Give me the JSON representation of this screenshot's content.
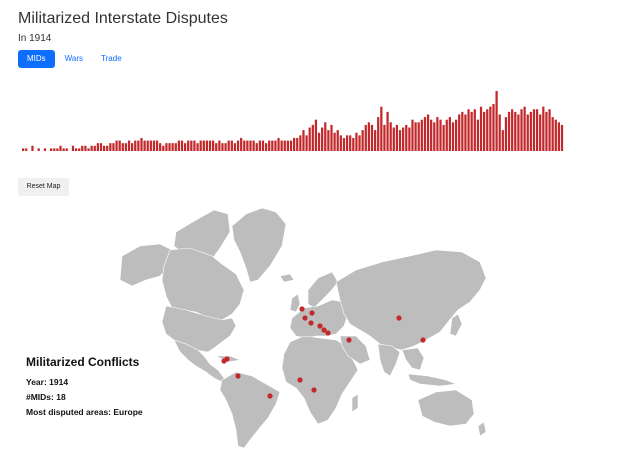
{
  "header": {
    "title": "Militarized Interstate Disputes",
    "subtitle": "In 1914"
  },
  "tabs": [
    {
      "label": "MIDs",
      "active": true
    },
    {
      "label": "Wars",
      "active": false
    },
    {
      "label": "Trade",
      "active": false
    }
  ],
  "colors": {
    "accent": "#0d6efd",
    "bar": "#c3282b",
    "land": "#bdbdbd",
    "point": "#c3282b"
  },
  "chart_data": {
    "type": "bar",
    "title": "",
    "values": [
      1,
      1,
      0,
      2,
      0,
      1,
      0,
      1,
      0,
      1,
      1,
      1,
      2,
      1,
      1,
      0,
      2,
      1,
      1,
      2,
      2,
      1,
      2,
      2,
      3,
      3,
      2,
      2,
      3,
      3,
      4,
      4,
      3,
      3,
      4,
      3,
      4,
      4,
      5,
      4,
      4,
      4,
      4,
      4,
      3,
      2,
      3,
      3,
      3,
      3,
      4,
      4,
      3,
      4,
      4,
      4,
      3,
      4,
      4,
      4,
      4,
      4,
      3,
      4,
      3,
      3,
      4,
      4,
      3,
      4,
      5,
      4,
      4,
      4,
      4,
      3,
      4,
      4,
      3,
      4,
      4,
      4,
      5,
      4,
      4,
      4,
      4,
      5,
      5,
      6,
      8,
      6,
      9,
      10,
      12,
      7,
      9,
      11,
      8,
      10,
      7,
      8,
      6,
      5,
      6,
      6,
      5,
      7,
      6,
      8,
      10,
      11,
      10,
      8,
      13,
      17,
      10,
      15,
      11,
      9,
      10,
      8,
      9,
      10,
      9,
      12,
      11,
      11,
      12,
      13,
      14,
      12,
      11,
      13,
      12,
      10,
      12,
      13,
      11,
      12,
      14,
      15,
      14,
      16,
      15,
      16,
      12,
      17,
      15,
      16,
      17,
      18,
      23,
      14,
      8,
      13,
      15,
      16,
      15,
      14,
      16,
      17,
      14,
      15,
      16,
      16,
      14,
      17,
      15,
      16,
      13,
      12,
      11,
      10
    ],
    "xlabel": "",
    "ylabel": ""
  },
  "controls": {
    "reset_label": "Reset Map"
  },
  "map_points": [
    {
      "name": "Caribbean"
    },
    {
      "name": "Caribbean-2"
    },
    {
      "name": "Venezuela"
    },
    {
      "name": "Brazil"
    },
    {
      "name": "West Africa"
    },
    {
      "name": "Central Africa"
    },
    {
      "name": "UK"
    },
    {
      "name": "Scandinavia"
    },
    {
      "name": "Benelux"
    },
    {
      "name": "Germany"
    },
    {
      "name": "Balkans-1"
    },
    {
      "name": "Balkans-2"
    },
    {
      "name": "Balkans-3"
    },
    {
      "name": "Middle East"
    },
    {
      "name": "Central Asia"
    },
    {
      "name": "China"
    }
  ],
  "info": {
    "title": "Militarized Conflicts",
    "year_line": "Year: 1914",
    "mids_line": "#MIDs: 18",
    "area_line": "Most disputed areas: Europe"
  }
}
